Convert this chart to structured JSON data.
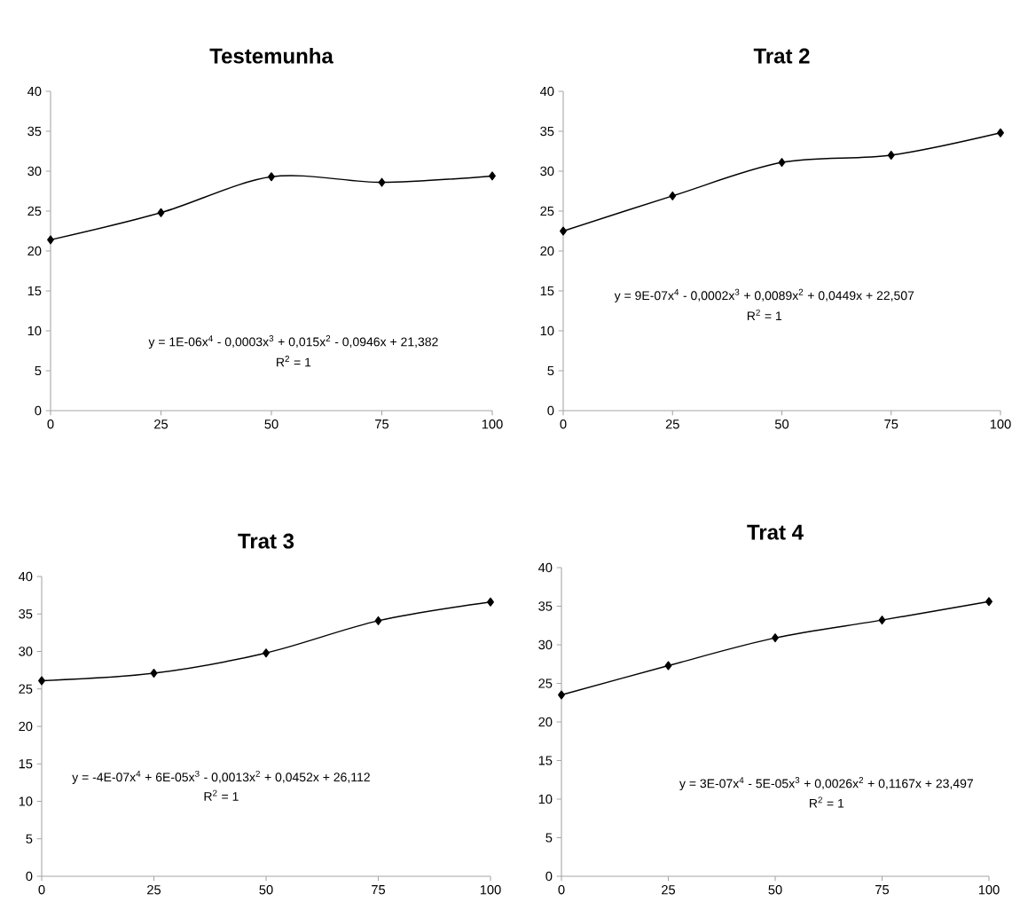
{
  "chart_data": [
    {
      "type": "line",
      "title": "Testemunha",
      "x": [
        0,
        25,
        50,
        75,
        100
      ],
      "series": [
        {
          "color": "#000000",
          "values": [
            21.4,
            24.8,
            29.3,
            28.6,
            29.4
          ]
        }
      ],
      "marker": "diamond",
      "line_style": "solid",
      "xlim": [
        0,
        100
      ],
      "xticks": [
        0,
        25,
        50,
        75,
        100
      ],
      "ylim": [
        0,
        40
      ],
      "yticks": [
        0,
        5,
        10,
        15,
        20,
        25,
        30,
        35,
        40
      ],
      "annotations": [
        "y = 1E-06x$^{4}$ - 0,0003x$^{3}$ + 0,015x$^{2}$ - 0,0946x + 21,382",
        "R$^{2}$ = 1"
      ]
    },
    {
      "type": "line",
      "title": "Trat 2",
      "x": [
        0,
        25,
        50,
        75,
        100
      ],
      "series": [
        {
          "color": "#000000",
          "values": [
            22.5,
            26.9,
            31.1,
            32.0,
            34.8
          ]
        }
      ],
      "marker": "diamond",
      "line_style": "solid",
      "xlim": [
        0,
        100
      ],
      "xticks": [
        0,
        25,
        50,
        75,
        100
      ],
      "ylim": [
        0,
        40
      ],
      "yticks": [
        0,
        5,
        10,
        15,
        20,
        25,
        30,
        35,
        40
      ],
      "annotations": [
        "y = 9E-07x$^{4}$ - 0,0002x$^{3}$ + 0,0089x$^{2}$ + 0,0449x + 22,507",
        "R$^{2}$ = 1"
      ]
    },
    {
      "type": "line",
      "title": "Trat 3",
      "x": [
        0,
        25,
        50,
        75,
        100
      ],
      "series": [
        {
          "color": "#000000",
          "values": [
            26.1,
            27.1,
            29.8,
            34.1,
            36.6
          ]
        }
      ],
      "marker": "diamond",
      "line_style": "solid",
      "xlim": [
        0,
        100
      ],
      "xticks": [
        0,
        25,
        50,
        75,
        100
      ],
      "ylim": [
        0,
        40
      ],
      "yticks": [
        0,
        5,
        10,
        15,
        20,
        25,
        30,
        35,
        40
      ],
      "annotations": [
        "y = -4E-07x$^{4}$ + 6E-05x$^{3}$ - 0,0013x$^{2}$ + 0,0452x + 26,112",
        "R$^{2}$ = 1"
      ]
    },
    {
      "type": "line",
      "title": "Trat 4",
      "x": [
        0,
        25,
        50,
        75,
        100
      ],
      "series": [
        {
          "color": "#000000",
          "values": [
            23.5,
            27.3,
            30.9,
            33.2,
            35.6
          ]
        }
      ],
      "marker": "diamond",
      "line_style": "solid",
      "xlim": [
        0,
        100
      ],
      "xticks": [
        0,
        25,
        50,
        75,
        100
      ],
      "ylim": [
        0,
        40
      ],
      "yticks": [
        0,
        5,
        10,
        15,
        20,
        25,
        30,
        35,
        40
      ],
      "annotations": [
        "y = 3E-07x$^{4}$ - 5E-05x$^{3}$ + 0,0026x$^{2}$ + 0,1167x + 23,497",
        "R$^{2}$ = 1"
      ]
    }
  ]
}
